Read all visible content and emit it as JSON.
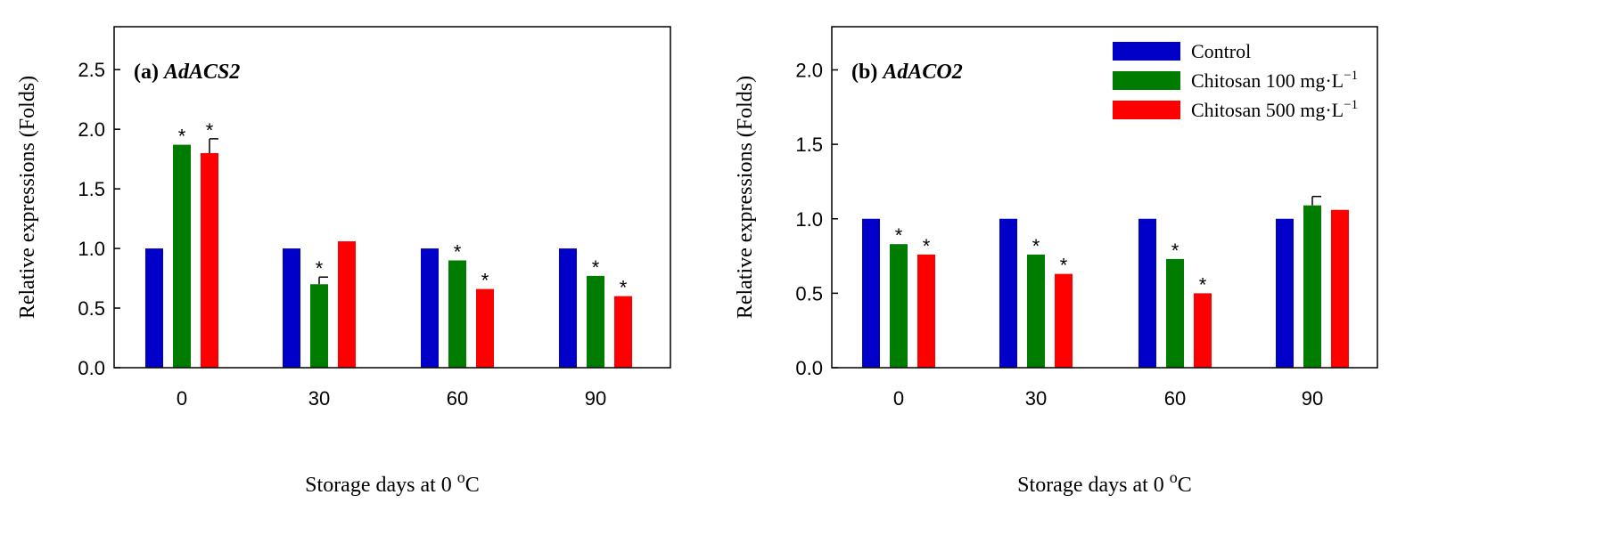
{
  "colors": {
    "control": "#0000c8",
    "c100": "#007d00",
    "c500": "#ff0000",
    "axis": "#000000"
  },
  "legend": {
    "items": [
      {
        "key": "control",
        "label": "Control",
        "unit": ""
      },
      {
        "key": "c100",
        "label": "Chitosan 100 mg",
        "unit_l": "L",
        "unit_sup": "−1"
      },
      {
        "key": "c500",
        "label": "Chitosan 500 mg",
        "unit_l": "L",
        "unit_sup": "−1"
      }
    ]
  },
  "chart_data": [
    {
      "type": "bar",
      "panel_label": "(a)",
      "gene": "AdACS2",
      "xlabel": "Storage days at 0 °C",
      "xlabel_main": "Storage days at 0 ",
      "xlabel_sup": "o",
      "xlabel_tail": "C",
      "ylabel": "Relative expressions (Folds)",
      "categories": [
        "0",
        "30",
        "60",
        "90"
      ],
      "ylim": [
        0,
        2.86
      ],
      "yticks": [
        "0.0",
        "0.5",
        "1.0",
        "1.5",
        "2.0",
        "2.5"
      ],
      "series": [
        {
          "name": "Control",
          "key": "control",
          "values": [
            1.0,
            1.0,
            1.0,
            1.0
          ],
          "errors": [
            0,
            0,
            0,
            0
          ],
          "sig": [
            false,
            false,
            false,
            false
          ]
        },
        {
          "name": "Chitosan 100 mg·L−1",
          "key": "c100",
          "values": [
            1.87,
            0.7,
            0.9,
            0.77
          ],
          "errors": [
            0,
            0.06,
            0,
            0
          ],
          "sig": [
            true,
            true,
            true,
            true
          ]
        },
        {
          "name": "Chitosan 500 mg·L−1",
          "key": "c500",
          "values": [
            1.8,
            1.06,
            0.66,
            0.6
          ],
          "errors": [
            0.12,
            0,
            0,
            0
          ],
          "sig": [
            true,
            false,
            true,
            true
          ]
        }
      ],
      "sig_marker": "*"
    },
    {
      "type": "bar",
      "panel_label": "(b)",
      "gene": "AdACO2",
      "xlabel": "Storage days at 0 °C",
      "xlabel_main": "Storage days at 0 ",
      "xlabel_sup": "o",
      "xlabel_tail": "C",
      "ylabel": "Relative expressions (Folds)",
      "categories": [
        "0",
        "30",
        "60",
        "90"
      ],
      "ylim": [
        0,
        2.29
      ],
      "yticks": [
        "0.0",
        "0.5",
        "1.0",
        "1.5",
        "2.0"
      ],
      "series": [
        {
          "name": "Control",
          "key": "control",
          "values": [
            1.0,
            1.0,
            1.0,
            1.0
          ],
          "errors": [
            0,
            0,
            0,
            0
          ],
          "sig": [
            false,
            false,
            false,
            false
          ]
        },
        {
          "name": "Chitosan 100 mg·L−1",
          "key": "c100",
          "values": [
            0.83,
            0.76,
            0.73,
            1.09
          ],
          "errors": [
            0,
            0,
            0,
            0.06
          ],
          "sig": [
            true,
            true,
            true,
            false
          ]
        },
        {
          "name": "Chitosan 500 mg·L−1",
          "key": "c500",
          "values": [
            0.76,
            0.63,
            0.5,
            1.06
          ],
          "errors": [
            0,
            0,
            0,
            0
          ],
          "sig": [
            true,
            true,
            true,
            false
          ]
        }
      ],
      "sig_marker": "*"
    }
  ]
}
